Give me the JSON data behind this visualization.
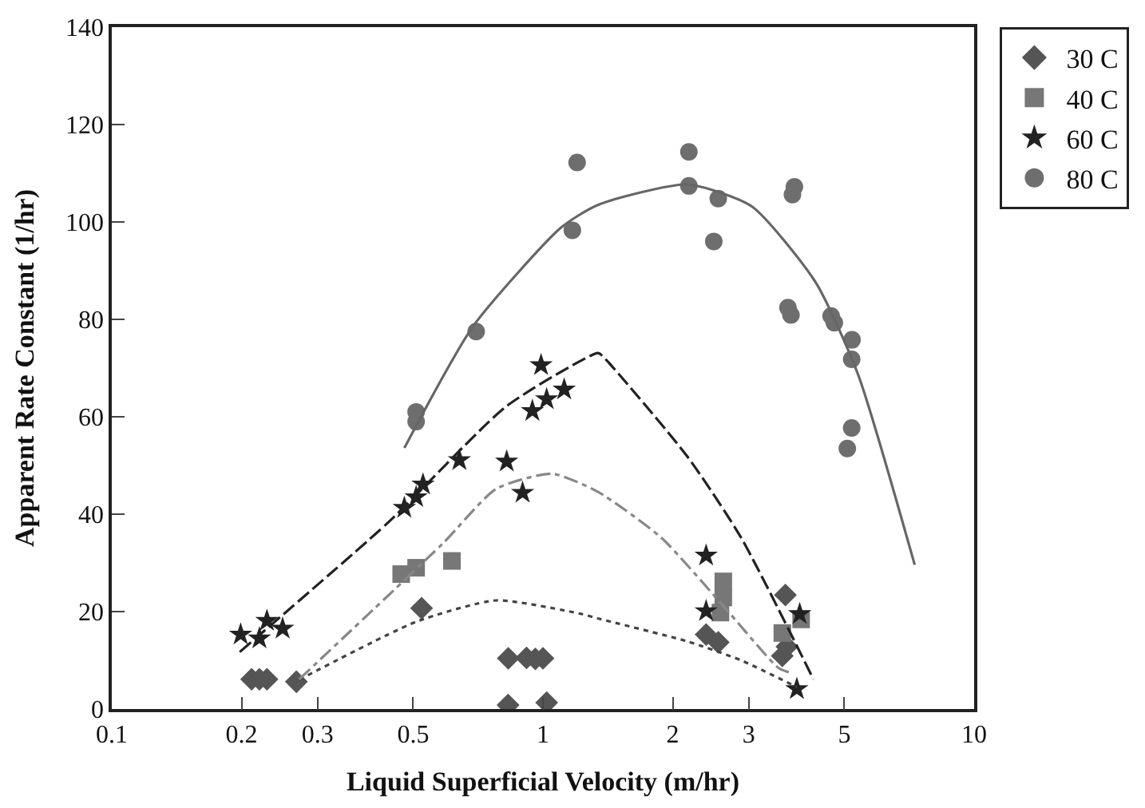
{
  "chart_data": {
    "type": "scatter",
    "xlabel": "Liquid Superficial Velocity (m/hr)",
    "ylabel": "Apparent Rate Constant (1/hr)",
    "log": "x",
    "xlim": [
      0.1,
      10
    ],
    "xticks": [
      0.1,
      0.2,
      0.3,
      0.5,
      1,
      2,
      3,
      5,
      10
    ],
    "ylim": [
      0,
      140
    ],
    "yticks": [
      0,
      20,
      40,
      60,
      80,
      100,
      120,
      140
    ],
    "grid": false,
    "legend": "right",
    "series": [
      {
        "name": "30 C",
        "marker": "diamond",
        "color": "#555555",
        "x": [
          0.211,
          0.22,
          0.229,
          0.268,
          0.523,
          0.831,
          0.916,
          0.96,
          1.0,
          0.83,
          1.02,
          2.39,
          2.55,
          3.65,
          3.59,
          3.68
        ],
        "values": [
          6.1,
          6.1,
          6.1,
          5.6,
          20.7,
          10.4,
          10.5,
          10.3,
          10.4,
          0.8,
          1.3,
          15.3,
          13.7,
          23.4,
          10.9,
          12.8
        ]
      },
      {
        "name": "40 C",
        "marker": "square",
        "color": "#777777",
        "x": [
          0.469,
          0.508,
          0.615,
          2.62,
          2.62,
          2.58,
          3.59,
          3.97
        ],
        "values": [
          27.7,
          29.0,
          30.4,
          26.2,
          22.9,
          19.8,
          15.6,
          18.4
        ]
      },
      {
        "name": "60 C",
        "marker": "star",
        "color": "#222222",
        "x": [
          0.199,
          0.22,
          0.229,
          0.249,
          0.477,
          0.508,
          0.527,
          0.64,
          0.824,
          0.897,
          0.99,
          0.945,
          1.02,
          1.12,
          2.39,
          2.39,
          3.94,
          3.88
        ],
        "values": [
          15.3,
          14.5,
          18.1,
          16.5,
          41.3,
          43.5,
          46.1,
          51.1,
          50.8,
          44.4,
          70.6,
          61.2,
          63.6,
          65.6,
          31.5,
          20.1,
          19.5,
          4.1
        ]
      },
      {
        "name": "80 C",
        "marker": "circle",
        "color": "#6e6e6e",
        "x": [
          0.508,
          0.508,
          0.7,
          1.2,
          1.17,
          2.18,
          2.18,
          2.55,
          2.49,
          3.83,
          3.79,
          3.7,
          3.76,
          4.66,
          4.74,
          5.21,
          5.2,
          5.2,
          5.08
        ],
        "values": [
          61.0,
          59.0,
          77.5,
          112.2,
          98.3,
          114.4,
          107.4,
          104.8,
          96.0,
          107.2,
          105.6,
          82.4,
          80.9,
          80.7,
          79.3,
          75.8,
          71.8,
          57.7,
          53.5
        ]
      },
      {
        "type": "line",
        "line_style": "dotted",
        "color": "#444444",
        "x": [
          0.272,
          0.508,
          0.779,
          1.23,
          1.34,
          2.16,
          2.88,
          3.88
        ],
        "values": [
          6,
          17.9,
          22.3,
          19.5,
          18.6,
          13.9,
          10,
          4.5
        ]
      },
      {
        "type": "line",
        "line_style": "dashdot",
        "color": "#888888",
        "x": [
          0.272,
          0.586,
          0.779,
          1.05,
          1.34,
          1.88,
          2.72,
          3.52,
          3.77
        ],
        "values": [
          6.1,
          34,
          45.2,
          48.3,
          44.6,
          35.2,
          19.5,
          8.4,
          7.4
        ]
      },
      {
        "type": "line",
        "line_style": "dashed",
        "color": "#222222",
        "x": [
          0.198,
          0.44,
          0.824,
          1.34,
          1.37,
          2.16,
          2.88,
          4.24
        ],
        "values": [
          11.7,
          38.5,
          62.2,
          73.1,
          72.6,
          51.9,
          35.2,
          6.1
        ]
      },
      {
        "type": "line",
        "line_style": "solid",
        "color": "#666666",
        "x": [
          0.477,
          0.69,
          1.1,
          1.34,
          2.16,
          3.05,
          4.29,
          5.38,
          7.28
        ],
        "values": [
          53.6,
          78.7,
          98.8,
          103.5,
          107.7,
          103.2,
          87.6,
          68.7,
          29.6
        ]
      }
    ]
  }
}
